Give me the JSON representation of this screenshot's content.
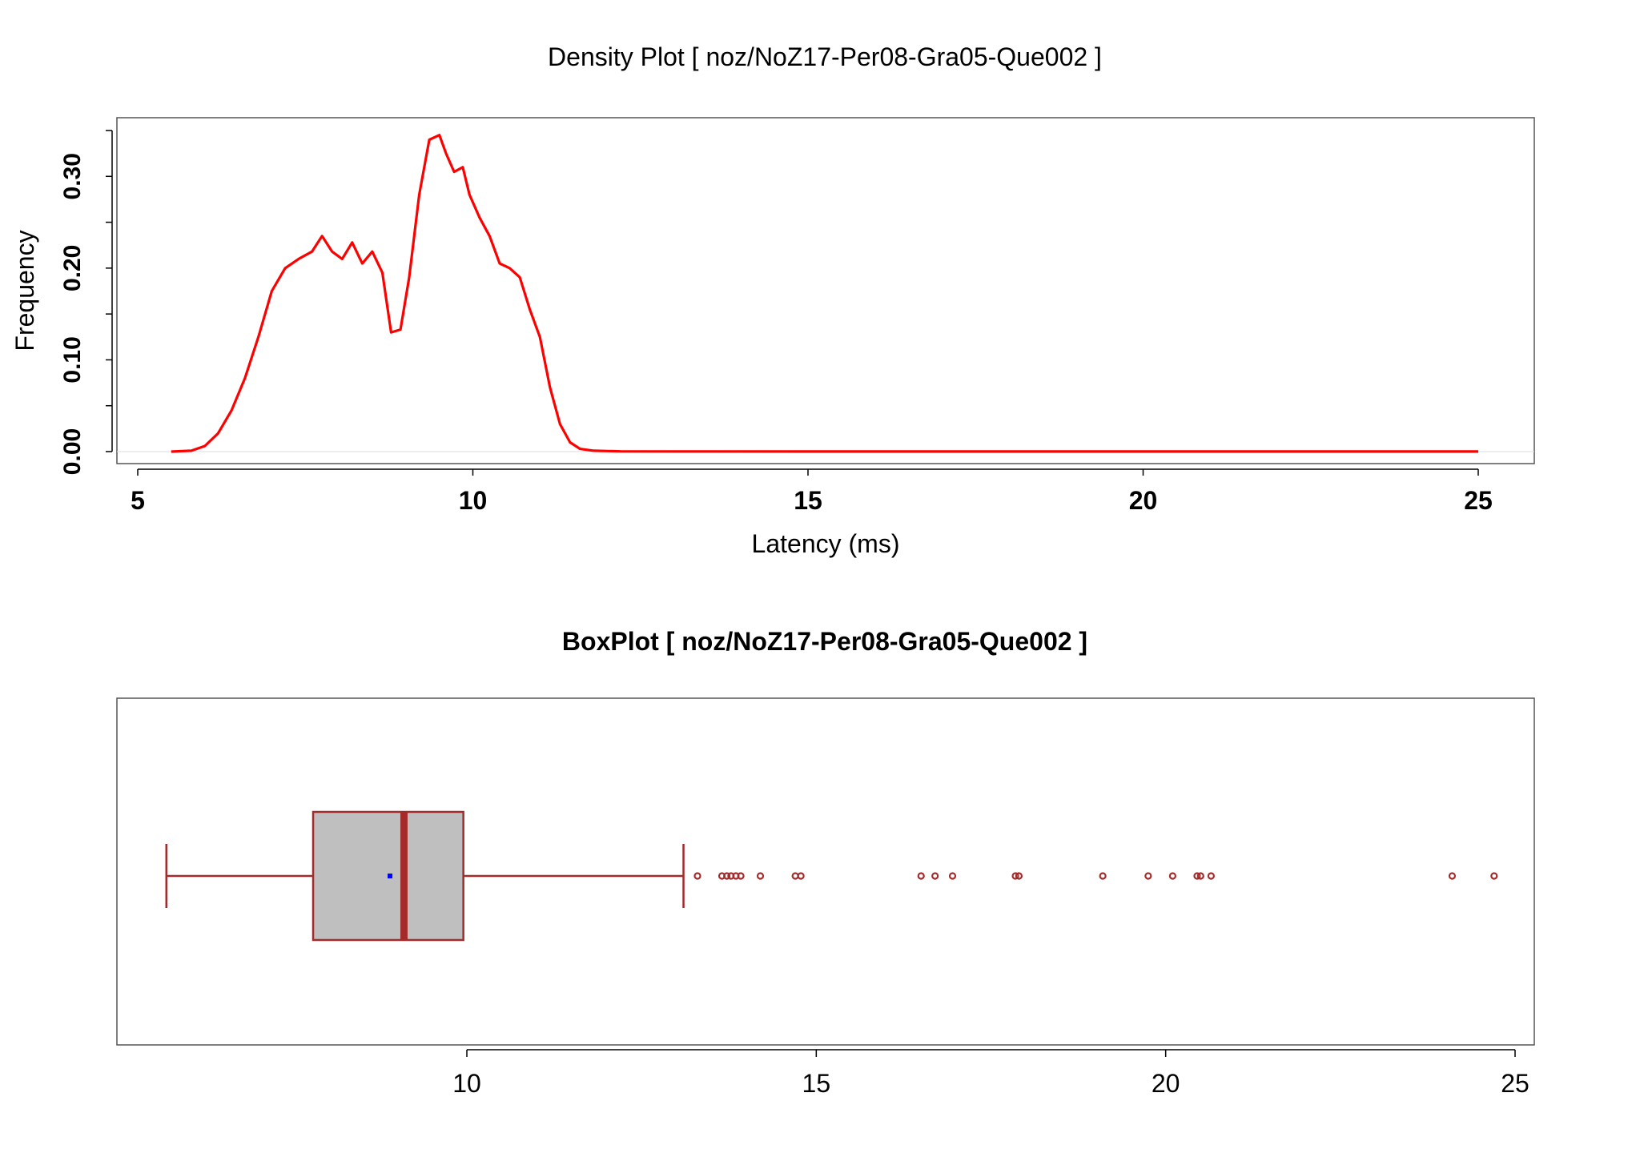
{
  "chart_data": [
    {
      "type": "area",
      "title": "Density Plot [ noz/NoZ17-Per08-Gra05-Que002 ]",
      "xlabel": "Latency (ms)",
      "ylabel": "Frequency",
      "xlim": [
        5,
        25
      ],
      "ylim": [
        0,
        0.35
      ],
      "x_ticks": [
        5,
        10,
        15,
        20,
        25
      ],
      "y_ticks": [
        0,
        0.1,
        0.2,
        0.3
      ],
      "x_tick_labels": [
        "5",
        "10",
        "15",
        "20",
        "25"
      ],
      "y_tick_labels": [
        "0.00",
        "0.10",
        "0.20",
        "0.30"
      ],
      "series": [
        {
          "color": "#ff0000",
          "x": [
            5.5,
            5.8,
            6.0,
            6.2,
            6.4,
            6.6,
            6.8,
            7.0,
            7.2,
            7.4,
            7.6,
            7.75,
            7.9,
            8.05,
            8.2,
            8.35,
            8.5,
            8.65,
            8.78,
            8.92,
            9.05,
            9.2,
            9.35,
            9.5,
            9.6,
            9.72,
            9.85,
            9.95,
            10.1,
            10.25,
            10.4,
            10.55,
            10.7,
            10.85,
            11.0,
            11.15,
            11.3,
            11.45,
            11.6,
            11.8,
            12.2,
            13,
            15,
            18,
            21,
            25
          ],
          "y": [
            0,
            0.001,
            0.006,
            0.02,
            0.045,
            0.08,
            0.125,
            0.175,
            0.2,
            0.21,
            0.218,
            0.235,
            0.218,
            0.21,
            0.228,
            0.205,
            0.218,
            0.195,
            0.13,
            0.133,
            0.19,
            0.28,
            0.34,
            0.345,
            0.325,
            0.305,
            0.31,
            0.28,
            0.255,
            0.235,
            0.205,
            0.2,
            0.19,
            0.155,
            0.125,
            0.07,
            0.03,
            0.01,
            0.003,
            0.001,
            0.0003,
            0.0002,
            0.0001,
            0.0001,
            0.0001,
            0.0001
          ]
        }
      ]
    },
    {
      "type": "box",
      "title": "BoxPlot [ noz/NoZ17-Per08-Gra05-Que002 ]",
      "xlim": [
        5,
        25
      ],
      "x_ticks": [
        10,
        15,
        20,
        25
      ],
      "x_tick_labels": [
        "10",
        "15",
        "20",
        "25"
      ],
      "whisker_low": 5.7,
      "q1": 7.8,
      "median": 9.1,
      "q3": 9.95,
      "whisker_high": 13.1,
      "mean": 8.9,
      "outliers": [
        13.3,
        13.65,
        13.72,
        13.78,
        13.85,
        13.92,
        14.2,
        14.7,
        14.78,
        16.5,
        16.7,
        16.95,
        17.85,
        17.9,
        19.1,
        19.75,
        20.1,
        20.45,
        20.5,
        20.65,
        24.1,
        24.7
      ],
      "box_color": "#bfbfbf",
      "line_color": "#a52a2a",
      "mean_color": "#0000ff"
    }
  ]
}
